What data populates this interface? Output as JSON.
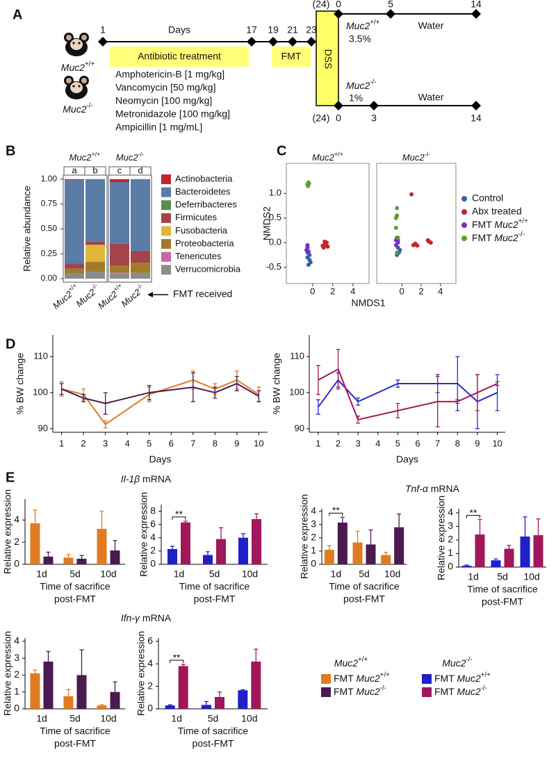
{
  "panel_labels": [
    "A",
    "B",
    "C",
    "D",
    "E"
  ],
  "panel_a": {
    "mice": [
      "Muc2+/+",
      "Muc2-/-"
    ],
    "timeline_unit": "Days",
    "timeline_days": [
      "1",
      "17",
      "19",
      "21",
      "23"
    ],
    "antibiotic_label": "Antibiotic treatment",
    "antibiotics": [
      "Amphotericin-B [1 mg/kg]",
      "Vancomycin [50 mg/kg]",
      "Neomycin [100 mg/kg]",
      "Metronidazole [100 mg/kg]",
      "Ampicillin [1 mg/mL]"
    ],
    "fmt_label": "FMT",
    "dss_label": "DSS",
    "branches": [
      {
        "n": "(24)",
        "genotype": "Muc2+/+",
        "dose": "3.5%",
        "water": "Water",
        "days": [
          "0",
          "5",
          "14"
        ]
      },
      {
        "n": "(24)",
        "genotype": "Muc2-/-",
        "dose": "1%",
        "water": "Water",
        "days": [
          "0",
          "3",
          "14"
        ]
      }
    ]
  },
  "chart_data": [
    {
      "type": "stacked_bar",
      "facet_titles": [
        "Muc2+/+",
        "Muc2-/-"
      ],
      "bar_labels": [
        "a",
        "b",
        "c",
        "d"
      ],
      "categories": [
        "Muc2+/+",
        "Muc2-/-",
        "Muc2+/+",
        "Muc2-/-"
      ],
      "annotation": "FMT received",
      "ylabel": "Relative abundance",
      "ylim": [
        -0.035,
        1.04
      ],
      "yticks": [
        {
          "value": 0,
          "label": "0.00"
        },
        {
          "value": 0.25,
          "label": "0.25"
        },
        {
          "value": 0.5,
          "label": "0.50"
        },
        {
          "value": 0.75,
          "label": "0.75"
        },
        {
          "value": 1,
          "label": "1.00"
        }
      ],
      "series": [
        {
          "name": "Actinobacteria",
          "color": "#c0272d",
          "values": [
            0.01,
            0,
            0.03,
            0
          ]
        },
        {
          "name": "Bacteroidetes",
          "color": "#5b7ca6",
          "values": [
            0.84,
            0.63,
            0.62,
            0.72
          ]
        },
        {
          "name": "Deferribacteres",
          "color": "#5e8a4f",
          "values": [
            0,
            0,
            0,
            0
          ]
        },
        {
          "name": "Firmicutes",
          "color": "#a4444a",
          "values": [
            0.05,
            0.03,
            0.22,
            0.12
          ]
        },
        {
          "name": "Fusobacteria",
          "color": "#e0b63a",
          "values": [
            0,
            0.17,
            0,
            0
          ]
        },
        {
          "name": "Proteobacteria",
          "color": "#a07b2a",
          "values": [
            0.05,
            0.1,
            0.07,
            0.1
          ]
        },
        {
          "name": "Tenericutes",
          "color": "#c866a8",
          "values": [
            0,
            0,
            0.01,
            0
          ]
        },
        {
          "name": "Verrucomicrobia",
          "color": "#8c8c8c",
          "values": [
            0.05,
            0.07,
            0.05,
            0.06
          ]
        }
      ]
    },
    {
      "type": "scatter",
      "xlabel": "NMDS1",
      "ylabel": "NMDS2",
      "xlim": [
        -2.6,
        5.6
      ],
      "ylim": [
        -0.83,
        1.61
      ],
      "xticks": [
        0,
        2,
        4
      ],
      "yticks": [
        -0.5,
        {
          "value": 0,
          "label": "0.0"
        },
        0.5,
        {
          "value": 1,
          "label": "1.0"
        }
      ],
      "groups": [
        {
          "name": "Control",
          "color": "#3a5fa8"
        },
        {
          "name": "Abx treated",
          "color": "#c0272d"
        },
        {
          "name": "FMT Muc2+/+",
          "color": "#7b2fbf"
        },
        {
          "name": "FMT Muc2-/-",
          "color": "#5c9e2e"
        }
      ],
      "facets": [
        {
          "title": "Muc2+/+",
          "series": [
            {
              "x": [
                -0.3,
                -0.5,
                -0.4,
                -0.3,
                -0.5,
                -0.2
              ],
              "y": [
                -0.25,
                -0.3,
                -0.45,
                -0.35,
                -0.2,
                -0.4
              ]
            },
            {
              "x": [
                1.2,
                1.4,
                1.1,
                1.3,
                1.5,
                1.2,
                1.0
              ],
              "y": [
                -0.05,
                0,
                -0.1,
                -0.02,
                -0.08,
                0.02,
                -0.06
              ]
            },
            {
              "x": [
                -0.5,
                -0.6,
                -0.4,
                -0.5
              ],
              "y": [
                -0.1,
                -0.15,
                -0.18,
                -0.05
              ]
            },
            {
              "x": [
                -0.4,
                -0.5,
                -0.45,
                -0.35
              ],
              "y": [
                1.22,
                1.18,
                1.15,
                1.2
              ]
            }
          ]
        },
        {
          "title": "Muc2-/-",
          "series": [
            {
              "x": [
                -0.4,
                -0.3,
                -0.5,
                -0.2,
                -0.4
              ],
              "y": [
                -0.1,
                -0.2,
                -0.25,
                -0.15,
                0.05
              ]
            },
            {
              "x": [
                1.0,
                2.8,
                3.0,
                2.7,
                1.2,
                1.4,
                1.6
              ],
              "y": [
                0.98,
                0.02,
                0.0,
                0.05,
                -0.05,
                -0.02,
                -0.06
              ]
            },
            {
              "x": [
                -0.6,
                -0.5,
                -0.4,
                -0.6
              ],
              "y": [
                -0.05,
                0.1,
                0.0,
                0.05
              ]
            },
            {
              "x": [
                -0.5,
                -0.6,
                -0.5,
                -0.4,
                -0.5,
                -0.6
              ],
              "y": [
                0.55,
                0.3,
                0.7,
                0.1,
                -0.2,
                0.5
              ]
            }
          ]
        }
      ]
    },
    {
      "type": "line",
      "x": [
        1,
        2,
        3,
        5,
        7,
        8,
        9,
        10
      ],
      "xlim": [
        0.6,
        10.4
      ],
      "xticks": [
        1,
        2,
        3,
        4,
        5,
        6,
        7,
        8,
        9,
        10
      ],
      "ylim": [
        89,
        116
      ],
      "yticks": [
        90,
        100,
        110
      ],
      "xlabel": "Days",
      "ylabel": "% BW change",
      "series": [
        {
          "color": "#e07b22",
          "values": [
            101,
            99.5,
            91.2,
            99.5,
            103.5,
            101,
            103.5,
            99.5
          ],
          "errors": [
            2,
            1.5,
            1,
            2,
            2.5,
            1.5,
            2.5,
            2
          ]
        },
        {
          "color": "#4b1a4f",
          "values": [
            101,
            98.5,
            97,
            100,
            101.5,
            100,
            102.5,
            99
          ],
          "errors": [
            1.5,
            1,
            3,
            2,
            4,
            1.5,
            2,
            1.5
          ]
        }
      ]
    },
    {
      "type": "line",
      "x": [
        1,
        2,
        3,
        5,
        7,
        8,
        9,
        10
      ],
      "xlim": [
        0.55,
        10.4
      ],
      "xticks": [
        1,
        2,
        3,
        4,
        5,
        6,
        7,
        8,
        9,
        10
      ],
      "ylim": [
        89,
        116
      ],
      "yticks": [
        90,
        100,
        110
      ],
      "xlabel": "Days",
      "ylabel": "% BW change",
      "series": [
        {
          "color": "#2a2acc",
          "values": [
            96,
            103.5,
            97.5,
            102.5,
            102.5,
            102.5,
            97.5,
            100
          ],
          "errors": [
            2,
            2,
            1,
            1,
            2.5,
            7.5,
            7.5,
            5
          ]
        },
        {
          "color": "#a3195b",
          "values": [
            103.5,
            106.5,
            92.5,
            95,
            97.5,
            97.5,
            100,
            102.5
          ],
          "errors": [
            4,
            5.5,
            1,
            2,
            7,
            0.5,
            5,
            0.5
          ]
        }
      ]
    },
    {
      "type": "grouped_bar",
      "title": "Il-1β mRNA",
      "categories": [
        "1d",
        "5d",
        "10d"
      ],
      "xlabel": [
        "Time of sacrifice",
        "post-FMT"
      ],
      "ylabel": "Relative expression",
      "ylim": [
        0,
        5.9
      ],
      "yticks": [
        0,
        2,
        4
      ],
      "series": [
        {
          "color": "#e07b22",
          "values": [
            3.7,
            0.6,
            3.2
          ],
          "errors": [
            1.2,
            0.3,
            1.6
          ]
        },
        {
          "color": "#4b1a4f",
          "values": [
            0.7,
            0.5,
            1.25
          ],
          "errors": [
            0.4,
            0.3,
            0.9
          ]
        }
      ]
    },
    {
      "type": "grouped_bar",
      "categories": [
        "1d",
        "5d",
        "10d"
      ],
      "xlabel": [
        "Time of sacrifice",
        "post-FMT"
      ],
      "ylabel": "Relative expression",
      "ylim": [
        0,
        9
      ],
      "yticks": [
        0,
        2,
        4,
        6,
        8
      ],
      "significance": "**",
      "series": [
        {
          "color": "#2020c8",
          "values": [
            2.3,
            1.4,
            4.0
          ],
          "errors": [
            0.4,
            0.5,
            0.6
          ]
        },
        {
          "color": "#a0175a",
          "values": [
            6.3,
            3.8,
            6.8
          ],
          "errors": [
            0.2,
            1.7,
            0.8
          ]
        }
      ]
    },
    {
      "type": "grouped_bar",
      "title": "Tnf-α mRNA",
      "categories": [
        "1d",
        "5d",
        "10d"
      ],
      "xlabel": [
        "Time of sacrifice",
        "post-FMT"
      ],
      "ylabel": "Relative expression",
      "ylim": [
        0,
        4.2
      ],
      "yticks": [
        0,
        1,
        2,
        3,
        4
      ],
      "significance": "**",
      "series": [
        {
          "color": "#e07b22",
          "values": [
            1.1,
            1.65,
            0.7
          ],
          "errors": [
            0.3,
            0.85,
            0.2
          ]
        },
        {
          "color": "#4b1a4f",
          "values": [
            3.15,
            1.5,
            2.8
          ],
          "errors": [
            0.4,
            1.1,
            1.0
          ]
        }
      ]
    },
    {
      "type": "grouped_bar",
      "categories": [
        "1d",
        "5d",
        "10d"
      ],
      "xlabel": [
        "Time of sacrifice",
        "post-FMT"
      ],
      "ylabel": "Relative expression",
      "ylim": [
        0,
        4.3
      ],
      "yticks": [
        0,
        1,
        2,
        3,
        4
      ],
      "significance": "**",
      "series": [
        {
          "color": "#2020c8",
          "values": [
            0.1,
            0.5,
            2.25
          ],
          "errors": [
            0.05,
            0.1,
            1.45
          ]
        },
        {
          "color": "#a0175a",
          "values": [
            2.4,
            1.35,
            2.35
          ],
          "errors": [
            1.1,
            0.25,
            1.2
          ]
        }
      ]
    },
    {
      "type": "grouped_bar",
      "title": "Ifn-γ mRNA",
      "categories": [
        "1d",
        "5d",
        "10d"
      ],
      "xlabel": [
        "Time of sacrifice",
        "post-FMT"
      ],
      "ylabel": "Relative expression",
      "ylim": [
        0,
        4.2
      ],
      "yticks": [
        0,
        1,
        2,
        3,
        4
      ],
      "series": [
        {
          "color": "#e07b22",
          "values": [
            2.1,
            0.75,
            0.2
          ],
          "errors": [
            0.2,
            0.4,
            0.05
          ]
        },
        {
          "color": "#4b1a4f",
          "values": [
            2.8,
            2.0,
            1.0
          ],
          "errors": [
            0.6,
            1.5,
            0.6
          ]
        }
      ]
    },
    {
      "type": "grouped_bar",
      "categories": [
        "1d",
        "5d",
        "10d"
      ],
      "xlabel": [
        "Time of sacrifice",
        "post-FMT"
      ],
      "ylabel": "Relative expression",
      "ylim": [
        0,
        6.3
      ],
      "yticks": [
        0,
        2,
        4,
        6
      ],
      "significance": "**",
      "series": [
        {
          "color": "#2020c8",
          "values": [
            0.3,
            0.35,
            1.65
          ],
          "errors": [
            0.05,
            0.3,
            0.05
          ]
        },
        {
          "color": "#a0175a",
          "values": [
            3.8,
            1.05,
            4.2
          ],
          "errors": [
            0.15,
            0.45,
            1.1
          ]
        }
      ]
    }
  ],
  "legend_e": {
    "groups": [
      {
        "title": "Muc2+/+",
        "items": [
          {
            "name": "FMT Muc2+/+",
            "color": "#e07b22"
          },
          {
            "name": "FMT Muc2-/-",
            "color": "#4b1a4f"
          }
        ]
      },
      {
        "title": "Muc2-/-",
        "items": [
          {
            "name": "FMT Muc2+/+",
            "color": "#2020c8"
          },
          {
            "name": "FMT Muc2-/-",
            "color": "#a0175a"
          }
        ]
      }
    ]
  }
}
